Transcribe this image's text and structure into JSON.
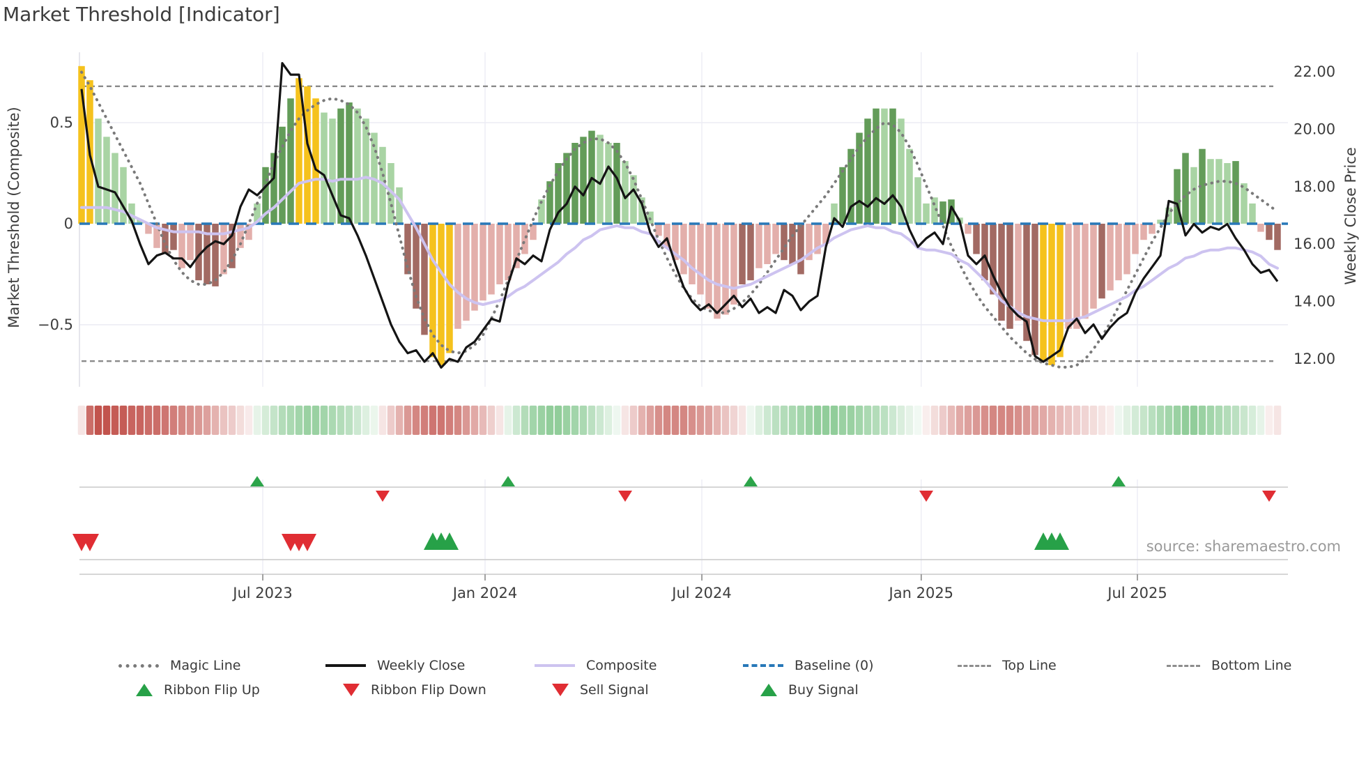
{
  "title": "Market Threshold [Indicator]",
  "source_note": "source: sharemaestro.com",
  "axes": {
    "left_label": "Market Threshold (Composite)",
    "right_label": "Weekly Close Price",
    "left_ticks": [
      {
        "label": "0.5",
        "value": 0.5
      },
      {
        "label": "0",
        "value": 0
      },
      {
        "label": "−0.5",
        "value": -0.5
      }
    ],
    "right_ticks": [
      {
        "label": "22.00",
        "value": 22
      },
      {
        "label": "20.00",
        "value": 20
      },
      {
        "label": "18.00",
        "value": 18
      },
      {
        "label": "16.00",
        "value": 16
      },
      {
        "label": "14.00",
        "value": 14
      },
      {
        "label": "12.00",
        "value": 12
      }
    ],
    "x_ticks": [
      {
        "label": "Jul 2023",
        "week": 21.67
      },
      {
        "label": "Jan 2024",
        "week": 48.25
      },
      {
        "label": "Jul 2024",
        "week": 74.17
      },
      {
        "label": "Jan 2025",
        "week": 100.4
      },
      {
        "label": "Jul 2025",
        "week": 126.25
      }
    ]
  },
  "colors": {
    "bar_gold": "#F5C21D",
    "bar_light_green": "#A9D4A4",
    "bar_dark_green": "#639C59",
    "bar_pink": "#E3AFAB",
    "bar_dark_red": "#A26A63",
    "weekly_close": "#141414",
    "magic_line": "#7a7a7a",
    "composite": "#CDC3F0",
    "baseline": "#2878B8",
    "top_bottom_line": "#8a8a8a",
    "grid": "#ECECF4",
    "spine": "#C9C9C9",
    "ribbon_red_max": "#C2534D",
    "ribbon_green_max": "#56B264",
    "flip_up": "#2CA44A",
    "flip_down": "#E02D33",
    "buy": "#27A148",
    "sell": "#E02D33",
    "tick_text": "#3d3d3d",
    "source_text": "#9a9a9a"
  },
  "legend": {
    "row1": [
      {
        "label": "Magic Line",
        "swatch": "dotted-gray-line"
      },
      {
        "label": "Weekly Close",
        "swatch": "solid-black-line"
      },
      {
        "label": "Composite",
        "swatch": "solid-lavender-line"
      },
      {
        "label": "Baseline (0)",
        "swatch": "dashed-blue-line"
      },
      {
        "label": "Top Line",
        "swatch": "dashed-gray-line"
      },
      {
        "label": "Bottom Line",
        "swatch": "dashed-gray-line"
      }
    ],
    "row2": [
      {
        "label": "Ribbon Flip Up",
        "swatch": "green-up-triangle"
      },
      {
        "label": "Ribbon Flip Down",
        "swatch": "red-down-triangle"
      },
      {
        "label": "Sell Signal",
        "swatch": "red-down-triangle"
      },
      {
        "label": "Buy Signal",
        "swatch": "green-up-triangle"
      }
    ]
  },
  "chart_data": {
    "type": "bar",
    "x_unit": "week",
    "weeks": 144,
    "date_range": "Feb 2023 – Nov 2025",
    "left_axis_range": [
      -0.75,
      0.8
    ],
    "right_axis_range": [
      11.5,
      22.5
    ],
    "top_line_value": 0.68,
    "bottom_line_value": -0.68,
    "baseline_value": 0,
    "threshold_bars": [
      0.78,
      0.71,
      0.52,
      0.43,
      0.35,
      0.28,
      0.1,
      0.02,
      -0.05,
      -0.12,
      -0.15,
      -0.13,
      -0.22,
      -0.18,
      -0.28,
      -0.3,
      -0.31,
      -0.25,
      -0.22,
      -0.12,
      -0.08,
      0.1,
      0.28,
      0.35,
      0.48,
      0.62,
      0.72,
      0.68,
      0.62,
      0.55,
      0.52,
      0.57,
      0.6,
      0.57,
      0.52,
      0.45,
      0.38,
      0.3,
      0.18,
      -0.25,
      -0.42,
      -0.55,
      -0.66,
      -0.7,
      -0.64,
      -0.52,
      -0.48,
      -0.43,
      -0.38,
      -0.35,
      -0.3,
      -0.28,
      -0.22,
      -0.15,
      -0.08,
      0.12,
      0.21,
      0.3,
      0.35,
      0.4,
      0.43,
      0.46,
      0.44,
      0.4,
      0.4,
      0.31,
      0.24,
      0.13,
      0.06,
      -0.06,
      -0.12,
      -0.18,
      -0.25,
      -0.3,
      -0.35,
      -0.42,
      -0.47,
      -0.45,
      -0.4,
      -0.3,
      -0.28,
      -0.22,
      -0.2,
      -0.15,
      -0.18,
      -0.2,
      -0.25,
      -0.18,
      -0.15,
      -0.1,
      0.1,
      0.28,
      0.37,
      0.45,
      0.52,
      0.57,
      0.57,
      0.57,
      0.52,
      0.37,
      0.23,
      0.1,
      0.13,
      0.11,
      0.12,
      0.03,
      -0.05,
      -0.15,
      -0.28,
      -0.35,
      -0.48,
      -0.52,
      -0.48,
      -0.58,
      -0.65,
      -0.68,
      -0.7,
      -0.66,
      -0.52,
      -0.52,
      -0.47,
      -0.42,
      -0.37,
      -0.33,
      -0.28,
      -0.25,
      -0.15,
      -0.08,
      -0.05,
      0.02,
      0.08,
      0.27,
      0.35,
      0.28,
      0.37,
      0.32,
      0.32,
      0.3,
      0.31,
      0.2,
      0.1,
      -0.04,
      -0.08,
      -0.13
    ],
    "bar_colors": [
      "g",
      "g",
      "lg",
      "lg",
      "lg",
      "lg",
      "lg",
      "lg",
      "p",
      "p",
      "dr",
      "dr",
      "p",
      "p",
      "dr",
      "dr",
      "dr",
      "p",
      "dr",
      "p",
      "p",
      "lg",
      "dg",
      "dg",
      "dg",
      "dg",
      "g",
      "g",
      "g",
      "lg",
      "lg",
      "dg",
      "dg",
      "lg",
      "lg",
      "lg",
      "lg",
      "lg",
      "lg",
      "dr",
      "dr",
      "dr",
      "g",
      "g",
      "g",
      "p",
      "p",
      "p",
      "p",
      "p",
      "p",
      "p",
      "p",
      "p",
      "p",
      "lg",
      "dg",
      "dg",
      "dg",
      "dg",
      "dg",
      "dg",
      "lg",
      "lg",
      "dg",
      "lg",
      "lg",
      "lg",
      "lg",
      "p",
      "p",
      "p",
      "p",
      "p",
      "p",
      "p",
      "p",
      "p",
      "p",
      "dr",
      "dr",
      "p",
      "p",
      "p",
      "dr",
      "dr",
      "dr",
      "p",
      "p",
      "p",
      "lg",
      "dg",
      "dg",
      "dg",
      "dg",
      "dg",
      "lg",
      "dg",
      "lg",
      "lg",
      "lg",
      "lg",
      "lg",
      "dg",
      "dg",
      "lg",
      "p",
      "dr",
      "dr",
      "dr",
      "dr",
      "dr",
      "p",
      "dr",
      "dr",
      "g",
      "g",
      "g",
      "p",
      "p",
      "p",
      "p",
      "dr",
      "p",
      "p",
      "p",
      "p",
      "p",
      "p",
      "lg",
      "lg",
      "dg",
      "dg",
      "lg",
      "dg",
      "lg",
      "lg",
      "lg",
      "dg",
      "lg",
      "lg",
      "p",
      "dr",
      "dr"
    ],
    "weekly_close": [
      21.4,
      19.1,
      18.0,
      17.9,
      17.8,
      17.3,
      16.8,
      16.0,
      15.3,
      15.6,
      15.7,
      15.5,
      15.5,
      15.2,
      15.6,
      15.9,
      16.1,
      16.0,
      16.3,
      17.3,
      17.9,
      17.7,
      18.0,
      18.3,
      22.3,
      21.9,
      21.9,
      19.5,
      18.6,
      18.4,
      17.7,
      17.0,
      16.9,
      16.3,
      15.6,
      14.8,
      14.0,
      13.2,
      12.6,
      12.2,
      12.3,
      11.9,
      12.2,
      11.7,
      12.0,
      11.9,
      12.4,
      12.6,
      13.0,
      13.4,
      13.3,
      14.6,
      15.5,
      15.3,
      15.6,
      15.4,
      16.5,
      17.1,
      17.4,
      18.0,
      17.7,
      18.3,
      18.1,
      18.7,
      18.3,
      17.6,
      17.9,
      17.4,
      16.4,
      15.9,
      16.2,
      15.3,
      14.5,
      14.0,
      13.7,
      13.9,
      13.6,
      13.9,
      14.2,
      13.8,
      14.1,
      13.6,
      13.8,
      13.6,
      14.4,
      14.2,
      13.7,
      14.0,
      14.2,
      15.9,
      16.9,
      16.6,
      17.3,
      17.5,
      17.3,
      17.6,
      17.4,
      17.7,
      17.3,
      16.5,
      15.9,
      16.2,
      16.4,
      16.0,
      17.3,
      16.8,
      15.6,
      15.3,
      15.6,
      14.9,
      14.3,
      13.8,
      13.5,
      13.3,
      12.1,
      11.9,
      12.1,
      12.3,
      13.1,
      13.4,
      12.9,
      13.2,
      12.7,
      13.1,
      13.4,
      13.6,
      14.3,
      14.8,
      15.2,
      15.6,
      17.5,
      17.4,
      16.3,
      16.7,
      16.4,
      16.6,
      16.5,
      16.7,
      16.2,
      15.8,
      15.3,
      15.0,
      15.1,
      14.7
    ],
    "composite": [
      0.08,
      0.08,
      0.08,
      0.08,
      0.07,
      0.06,
      0.04,
      0.02,
      0.0,
      -0.02,
      -0.03,
      -0.04,
      -0.04,
      -0.04,
      -0.04,
      -0.05,
      -0.05,
      -0.05,
      -0.04,
      -0.03,
      -0.02,
      0.01,
      0.05,
      0.08,
      0.12,
      0.16,
      0.2,
      0.21,
      0.22,
      0.22,
      0.21,
      0.22,
      0.22,
      0.22,
      0.23,
      0.22,
      0.2,
      0.16,
      0.12,
      0.05,
      -0.02,
      -0.1,
      -0.18,
      -0.24,
      -0.3,
      -0.34,
      -0.37,
      -0.39,
      -0.4,
      -0.39,
      -0.38,
      -0.36,
      -0.33,
      -0.31,
      -0.28,
      -0.25,
      -0.22,
      -0.19,
      -0.15,
      -0.12,
      -0.08,
      -0.06,
      -0.03,
      -0.02,
      -0.01,
      -0.02,
      -0.02,
      -0.04,
      -0.05,
      -0.09,
      -0.12,
      -0.15,
      -0.18,
      -0.22,
      -0.25,
      -0.28,
      -0.3,
      -0.31,
      -0.32,
      -0.31,
      -0.3,
      -0.28,
      -0.26,
      -0.24,
      -0.22,
      -0.2,
      -0.18,
      -0.15,
      -0.12,
      -0.1,
      -0.07,
      -0.05,
      -0.03,
      -0.02,
      -0.01,
      -0.02,
      -0.02,
      -0.04,
      -0.05,
      -0.08,
      -0.12,
      -0.13,
      -0.13,
      -0.14,
      -0.15,
      -0.18,
      -0.2,
      -0.24,
      -0.28,
      -0.33,
      -0.38,
      -0.41,
      -0.44,
      -0.46,
      -0.47,
      -0.48,
      -0.48,
      -0.48,
      -0.48,
      -0.47,
      -0.46,
      -0.44,
      -0.42,
      -0.4,
      -0.38,
      -0.36,
      -0.33,
      -0.31,
      -0.28,
      -0.25,
      -0.22,
      -0.2,
      -0.17,
      -0.16,
      -0.14,
      -0.13,
      -0.13,
      -0.12,
      -0.12,
      -0.13,
      -0.14,
      -0.16,
      -0.2,
      -0.22
    ],
    "magic_line": [
      0.75,
      0.68,
      0.6,
      0.52,
      0.44,
      0.36,
      0.28,
      0.2,
      0.1,
      0.0,
      -0.1,
      -0.18,
      -0.24,
      -0.28,
      -0.3,
      -0.3,
      -0.28,
      -0.24,
      -0.18,
      -0.1,
      0.0,
      0.1,
      0.2,
      0.3,
      0.38,
      0.46,
      0.52,
      0.56,
      0.59,
      0.61,
      0.62,
      0.61,
      0.59,
      0.55,
      0.48,
      0.38,
      0.25,
      0.1,
      -0.06,
      -0.22,
      -0.36,
      -0.47,
      -0.55,
      -0.6,
      -0.63,
      -0.64,
      -0.63,
      -0.6,
      -0.55,
      -0.47,
      -0.38,
      -0.28,
      -0.18,
      -0.08,
      0.02,
      0.11,
      0.19,
      0.26,
      0.32,
      0.37,
      0.4,
      0.42,
      0.42,
      0.4,
      0.36,
      0.3,
      0.22,
      0.12,
      0.02,
      -0.08,
      -0.17,
      -0.25,
      -0.32,
      -0.37,
      -0.41,
      -0.43,
      -0.44,
      -0.44,
      -0.42,
      -0.39,
      -0.35,
      -0.3,
      -0.24,
      -0.18,
      -0.12,
      -0.06,
      -0.01,
      0.04,
      0.09,
      0.14,
      0.2,
      0.26,
      0.32,
      0.38,
      0.43,
      0.47,
      0.5,
      0.49,
      0.45,
      0.38,
      0.29,
      0.19,
      0.09,
      -0.01,
      -0.11,
      -0.2,
      -0.28,
      -0.35,
      -0.41,
      -0.46,
      -0.51,
      -0.56,
      -0.6,
      -0.64,
      -0.67,
      -0.69,
      -0.7,
      -0.71,
      -0.71,
      -0.7,
      -0.67,
      -0.62,
      -0.56,
      -0.49,
      -0.41,
      -0.33,
      -0.25,
      -0.17,
      -0.09,
      -0.02,
      0.05,
      0.1,
      0.14,
      0.17,
      0.19,
      0.2,
      0.21,
      0.21,
      0.2,
      0.18,
      0.15,
      0.12,
      0.09,
      0.06
    ],
    "ribbon": [
      -0.15,
      -0.85,
      -1.0,
      -1.0,
      -0.95,
      -0.95,
      -0.9,
      -0.9,
      -0.85,
      -0.85,
      -0.8,
      -0.75,
      -0.7,
      -0.65,
      -0.6,
      -0.55,
      -0.45,
      -0.35,
      -0.3,
      -0.2,
      -0.12,
      0.15,
      0.25,
      0.35,
      0.45,
      0.5,
      0.55,
      0.6,
      0.6,
      0.55,
      0.5,
      0.45,
      0.4,
      0.3,
      0.2,
      0.12,
      -0.15,
      -0.3,
      -0.45,
      -0.6,
      -0.7,
      -0.75,
      -0.8,
      -0.8,
      -0.75,
      -0.7,
      -0.6,
      -0.5,
      -0.4,
      -0.28,
      -0.15,
      0.15,
      0.3,
      0.45,
      0.55,
      0.6,
      0.65,
      0.65,
      0.6,
      0.55,
      0.5,
      0.4,
      0.3,
      0.2,
      0.1,
      -0.15,
      -0.3,
      -0.45,
      -0.55,
      -0.65,
      -0.7,
      -0.7,
      -0.7,
      -0.65,
      -0.6,
      -0.55,
      -0.45,
      -0.35,
      -0.25,
      -0.15,
      0.1,
      0.2,
      0.3,
      0.4,
      0.45,
      0.5,
      0.55,
      0.6,
      0.65,
      0.65,
      0.65,
      0.6,
      0.6,
      0.55,
      0.5,
      0.45,
      0.4,
      0.3,
      0.22,
      0.15,
      0.08,
      -0.1,
      -0.2,
      -0.3,
      -0.4,
      -0.5,
      -0.55,
      -0.6,
      -0.65,
      -0.7,
      -0.7,
      -0.7,
      -0.65,
      -0.6,
      -0.55,
      -0.5,
      -0.45,
      -0.4,
      -0.35,
      -0.3,
      -0.25,
      -0.2,
      -0.15,
      -0.1,
      0.1,
      0.18,
      0.26,
      0.34,
      0.42,
      0.5,
      0.55,
      0.6,
      0.65,
      0.65,
      0.6,
      0.55,
      0.5,
      0.45,
      0.4,
      0.32,
      0.24,
      0.15,
      -0.1,
      -0.15
    ],
    "signals": {
      "ribbon_flip_up_weeks": [
        21,
        51,
        80,
        124
      ],
      "ribbon_flip_down_weeks": [
        36,
        65,
        101,
        142
      ],
      "sell_signal_weeks": [
        0,
        1,
        25,
        26,
        27
      ],
      "buy_signal_weeks": [
        42,
        43,
        44,
        115,
        116,
        117
      ]
    }
  }
}
